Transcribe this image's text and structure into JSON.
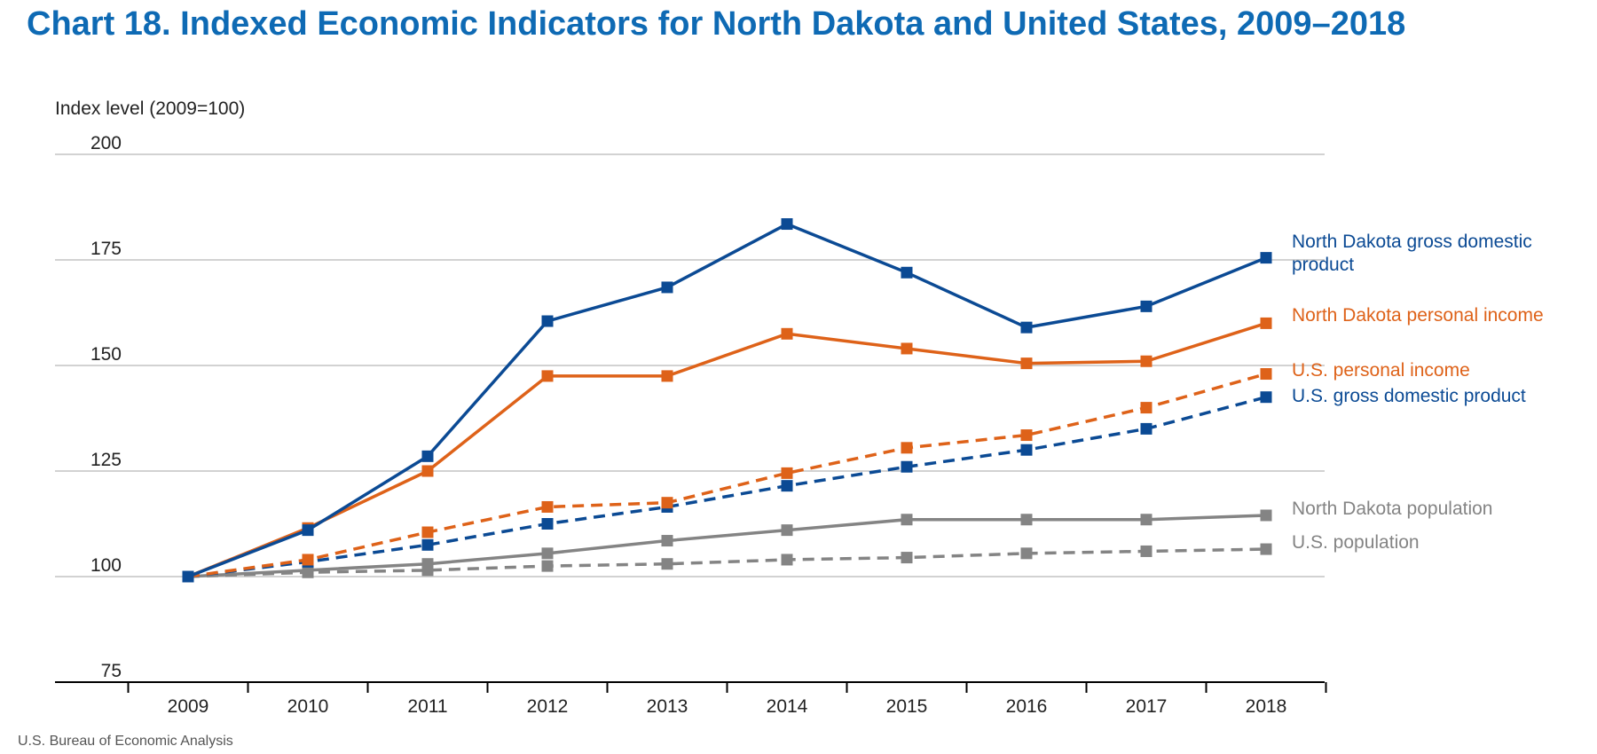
{
  "chart_data": {
    "type": "line",
    "title": "Chart 18. Indexed Economic Indicators for North Dakota and United States, 2009–2018",
    "ylabel": "Index level (2009=100)",
    "xlabel": "",
    "x": [
      "2009",
      "2010",
      "2011",
      "2012",
      "2013",
      "2014",
      "2015",
      "2016",
      "2017",
      "2018"
    ],
    "ylim": [
      75,
      200
    ],
    "yticks": [
      "75",
      "100",
      "125",
      "150",
      "175",
      "200"
    ],
    "grid": true,
    "legend": "direct labels at right end of each series",
    "source": "U.S. Bureau of Economic Analysis",
    "series": [
      {
        "name": "North Dakota gross domestic product",
        "color": "#0b4a94",
        "dashed": false,
        "values": [
          100,
          111,
          128.5,
          160.5,
          168.5,
          183.5,
          172,
          159,
          164,
          175.5
        ]
      },
      {
        "name": "North Dakota personal income",
        "color": "#de6219",
        "dashed": false,
        "values": [
          100,
          111.5,
          125,
          147.5,
          147.5,
          157.5,
          154,
          150.5,
          151,
          160
        ]
      },
      {
        "name": "U.S. personal income",
        "color": "#de6219",
        "dashed": true,
        "values": [
          100,
          104,
          110.5,
          116.5,
          117.5,
          124.5,
          130.5,
          133.5,
          140,
          148
        ]
      },
      {
        "name": "U.S. gross domestic product",
        "color": "#0b4a94",
        "dashed": true,
        "values": [
          100,
          103.5,
          107.5,
          112.5,
          116.5,
          121.5,
          126,
          130,
          135,
          142.5
        ]
      },
      {
        "name": "North Dakota population",
        "color": "#848484",
        "dashed": false,
        "values": [
          100,
          101.5,
          103,
          105.5,
          108.5,
          111,
          113.5,
          113.5,
          113.5,
          114.5
        ]
      },
      {
        "name": "U.S. population",
        "color": "#848484",
        "dashed": true,
        "values": [
          100,
          101,
          101.5,
          102.5,
          103,
          104,
          104.5,
          105.5,
          106,
          106.5
        ]
      }
    ],
    "series_labels": [
      {
        "lines": [
          "North Dakota gross domestic",
          "product"
        ]
      },
      {
        "lines": [
          "North Dakota personal income"
        ]
      },
      {
        "lines": [
          "U.S. personal income"
        ]
      },
      {
        "lines": [
          "U.S. gross domestic product"
        ]
      },
      {
        "lines": [
          "North Dakota population"
        ]
      },
      {
        "lines": [
          "U.S. population"
        ]
      }
    ]
  }
}
